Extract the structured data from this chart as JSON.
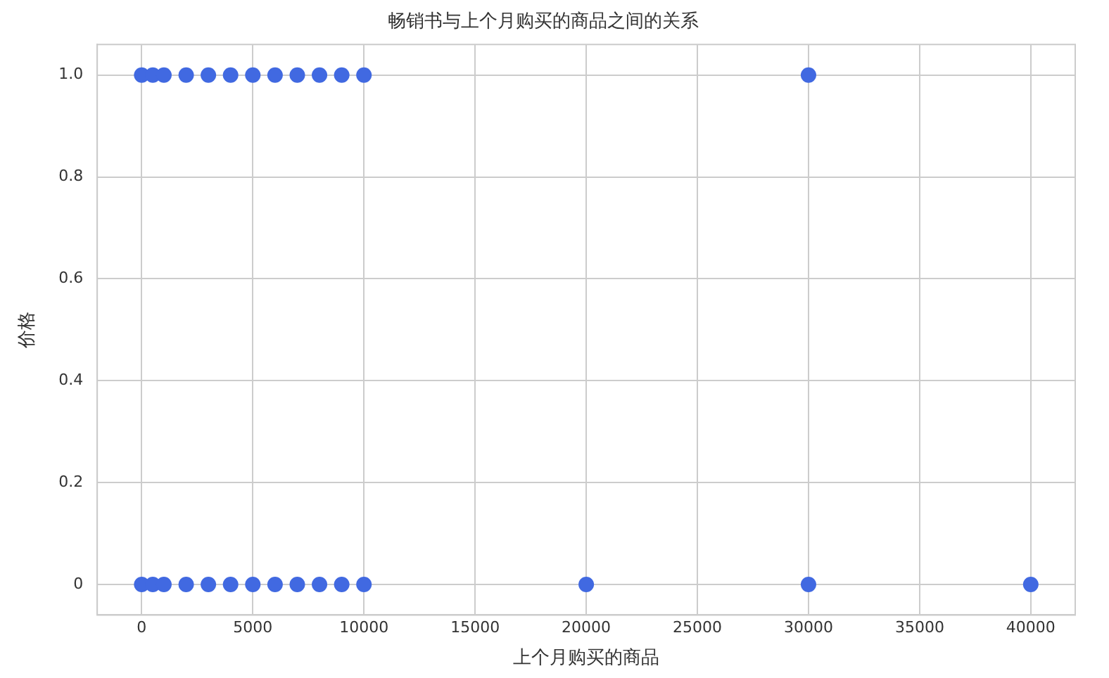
{
  "chart_data": {
    "type": "scatter",
    "title": "畅销书与上个月购买的商品之间的关系",
    "xlabel": "上个月购买的商品",
    "ylabel": "价格",
    "series": [
      {
        "color": "#4169e1",
        "x": [
          0,
          500,
          1000,
          2000,
          3000,
          4000,
          5000,
          6000,
          7000,
          8000,
          9000,
          10000,
          30000,
          0,
          500,
          1000,
          2000,
          3000,
          4000,
          5000,
          6000,
          7000,
          8000,
          9000,
          10000,
          20000,
          30000,
          40000
        ],
        "values": [
          1,
          1,
          1,
          1,
          1,
          1,
          1,
          1,
          1,
          1,
          1,
          1,
          1,
          0,
          0,
          0,
          0,
          0,
          0,
          0,
          0,
          0,
          0,
          0,
          0,
          0,
          0,
          0
        ]
      }
    ],
    "xlim": [
      -2000,
      42000
    ],
    "xticks": [
      0,
      5000,
      10000,
      15000,
      20000,
      25000,
      30000,
      35000,
      40000
    ],
    "ylim": [
      -0.06,
      1.06
    ],
    "yticks": [
      0,
      {
        "value": 0.2,
        "label": "0.2"
      },
      {
        "value": 0.4,
        "label": "0.4"
      },
      {
        "value": 0.6,
        "label": "0.6"
      },
      {
        "value": 0.8,
        "label": "0.8"
      },
      {
        "value": 1,
        "label": "1.0"
      }
    ],
    "grid": true,
    "legend": false,
    "marker": "circle"
  }
}
